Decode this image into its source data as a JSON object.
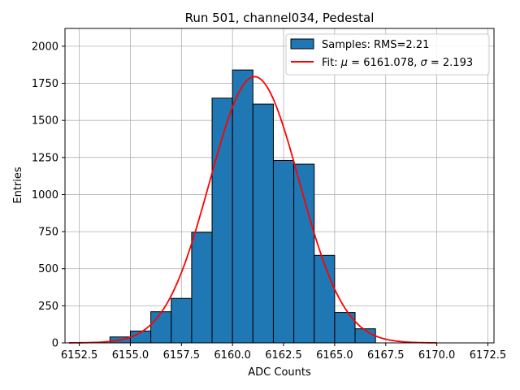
{
  "chart_data": {
    "type": "bar",
    "title": "Run 501, channel034, Pedestal",
    "xlabel": "ADC Counts",
    "ylabel": "Entries",
    "xlim": [
      6151.8,
      6172.8
    ],
    "ylim": [
      0,
      2120
    ],
    "grid": true,
    "legend_position": "top-right",
    "x_ticks": [
      6152.5,
      6155.0,
      6157.5,
      6160.0,
      6162.5,
      6165.0,
      6167.5,
      6170.0,
      6172.5
    ],
    "x_tick_labels": [
      "6152.5",
      "6155.0",
      "6157.5",
      "6160.0",
      "6162.5",
      "6165.0",
      "6167.5",
      "6170.0",
      "6172.5"
    ],
    "y_ticks": [
      0,
      250,
      500,
      750,
      1000,
      1250,
      1500,
      1750,
      2000
    ],
    "y_tick_labels": [
      "0",
      "250",
      "500",
      "750",
      "1000",
      "1250",
      "1500",
      "1750",
      "2000"
    ],
    "histogram": {
      "name": "Samples: RMS=2.21",
      "color": "#1f77b4",
      "edgecolor": "#000000",
      "bin_edges": [
        6154,
        6155,
        6156,
        6157,
        6158,
        6159,
        6160,
        6161,
        6162,
        6163,
        6164,
        6165,
        6166,
        6167
      ],
      "counts": [
        40,
        80,
        210,
        300,
        745,
        1650,
        1840,
        1610,
        1230,
        1205,
        590,
        205,
        95
      ]
    },
    "fit": {
      "name_prefix": "Fit: ",
      "name_mu": "μ",
      "name_mu_eq": " = 6161.078, ",
      "name_sigma": "σ",
      "name_sigma_eq": " = 2.193",
      "color": "#ff0000",
      "mu": 6161.078,
      "sigma": 2.193,
      "amplitude": 1795,
      "x_range": [
        6152,
        6170
      ]
    }
  }
}
